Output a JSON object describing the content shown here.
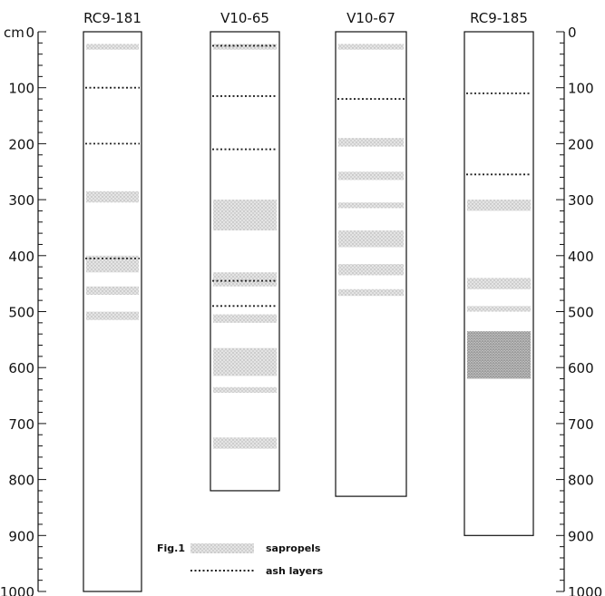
{
  "axis": {
    "unit": "cm",
    "ticks": [
      "0",
      "100",
      "200",
      "300",
      "400",
      "500",
      "600",
      "700",
      "800",
      "900",
      "1000"
    ]
  },
  "cores": [
    {
      "name": "RC9-181",
      "length": 1000,
      "sapropels": [
        [
          22,
          32
        ],
        [
          285,
          305
        ],
        [
          400,
          430
        ],
        [
          455,
          470
        ],
        [
          500,
          515
        ]
      ],
      "ash_layers": [
        100,
        200,
        405
      ]
    },
    {
      "name": "V10-65",
      "length": 820,
      "sapropels": [
        [
          22,
          32
        ],
        [
          300,
          355
        ],
        [
          430,
          455
        ],
        [
          505,
          520
        ],
        [
          565,
          615
        ],
        [
          635,
          645
        ],
        [
          725,
          745
        ]
      ],
      "ash_layers": [
        25,
        115,
        210,
        445,
        490
      ]
    },
    {
      "name": "V10-67",
      "length": 830,
      "sapropels": [
        [
          22,
          32
        ],
        [
          190,
          205
        ],
        [
          250,
          265
        ],
        [
          305,
          315
        ],
        [
          355,
          385
        ],
        [
          415,
          435
        ],
        [
          460,
          472
        ]
      ],
      "ash_layers": [
        120
      ]
    },
    {
      "name": "RC9-185",
      "length": 900,
      "sapropels": [
        [
          300,
          320
        ],
        [
          440,
          460
        ],
        [
          490,
          500
        ],
        [
          535,
          620
        ]
      ],
      "ash_layers": [
        110,
        255
      ]
    }
  ],
  "legend": {
    "figure_label": "Fig.1",
    "sapropels_label": "sapropels",
    "ash_label": "ash layers"
  },
  "colors": {
    "sapropel": "#cfcfcf",
    "sapropel_dark": "#9e9e9e",
    "ash": "#222222",
    "line": "#111111"
  }
}
